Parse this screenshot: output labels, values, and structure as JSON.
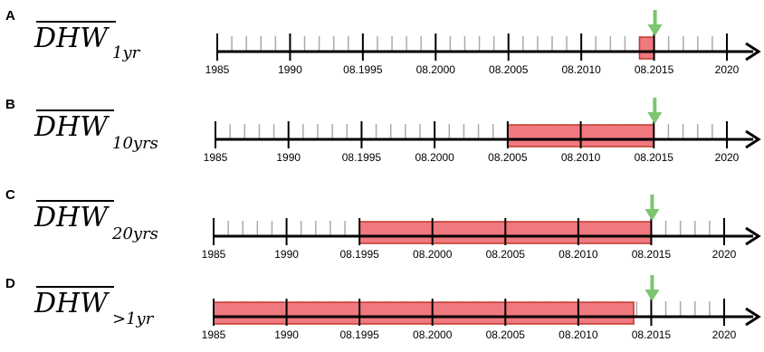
{
  "colors": {
    "axis": "#000000",
    "minor_tick": "#aaaaaa",
    "window_fill": "#f0787f",
    "window_stroke": "#c0392b",
    "arrow": "#7dc56f"
  },
  "panels": [
    {
      "letter": "A",
      "label_main": "DHW",
      "label_sub": "1yr",
      "tick_labels": [
        "1985",
        "1990",
        "08.1995",
        "08.2000",
        "08.2005",
        "08.2010",
        "08.2015",
        "2020"
      ],
      "window": {
        "start_year": 2014.0,
        "end_year": 2015.0
      },
      "marker_year": 2015.0
    },
    {
      "letter": "B",
      "label_main": "DHW",
      "label_sub": "10yrs",
      "tick_labels": [
        "1985",
        "1990",
        "08.1995",
        "08.2000",
        "08.2005",
        "08.2010",
        "08.2015",
        "2020"
      ],
      "window": {
        "start_year": 2005.0,
        "end_year": 2015.0
      },
      "marker_year": 2015.0
    },
    {
      "letter": "C",
      "label_main": "DHW",
      "label_sub": "20yrs",
      "tick_labels": [
        "1985",
        "1990",
        "08.1995",
        "08.2000",
        "08.2005",
        "08.2010",
        "08.2015",
        "2020"
      ],
      "window": {
        "start_year": 1995.0,
        "end_year": 2015.0
      },
      "marker_year": 2015.0
    },
    {
      "letter": "D",
      "label_main": "DHW",
      "label_sub": ">1yr",
      "tick_labels": [
        "1985",
        "1990",
        "08.1995",
        "08.2000",
        "08.2005",
        "08.2010",
        "08.2015",
        "2020"
      ],
      "window": {
        "start_year": 1985.0,
        "end_year": 2013.8
      },
      "marker_year": 2015.0
    }
  ]
}
